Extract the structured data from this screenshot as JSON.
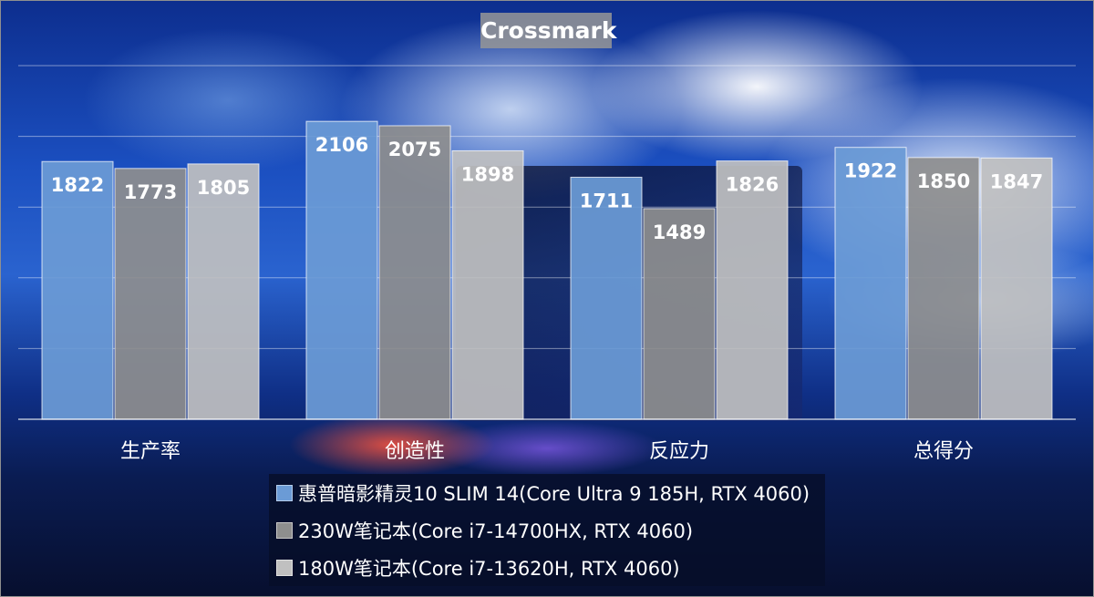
{
  "chart_data": {
    "type": "bar",
    "title": "Crossmark",
    "categories": [
      "生产率",
      "创造性",
      "反应力",
      "总得分"
    ],
    "series": [
      {
        "name": "惠普暗影精灵10 SLIM 14(Core Ultra 9 185H, RTX 4060)",
        "values": [
          1822,
          2106,
          1711,
          1922
        ],
        "color": "#6b9bd6"
      },
      {
        "name": "230W笔记本(Core i7-14700HX, RTX 4060)",
        "values": [
          1773,
          2075,
          1489,
          1850
        ],
        "color": "#8e8e8e"
      },
      {
        "name": "180W笔记本(Core i7-13620H, RTX 4060)",
        "values": [
          1805,
          1898,
          1826,
          1847
        ],
        "color": "#c0c0c0"
      }
    ],
    "ylim": [
      0,
      2500
    ],
    "grid": true,
    "legend_position": "bottom"
  }
}
